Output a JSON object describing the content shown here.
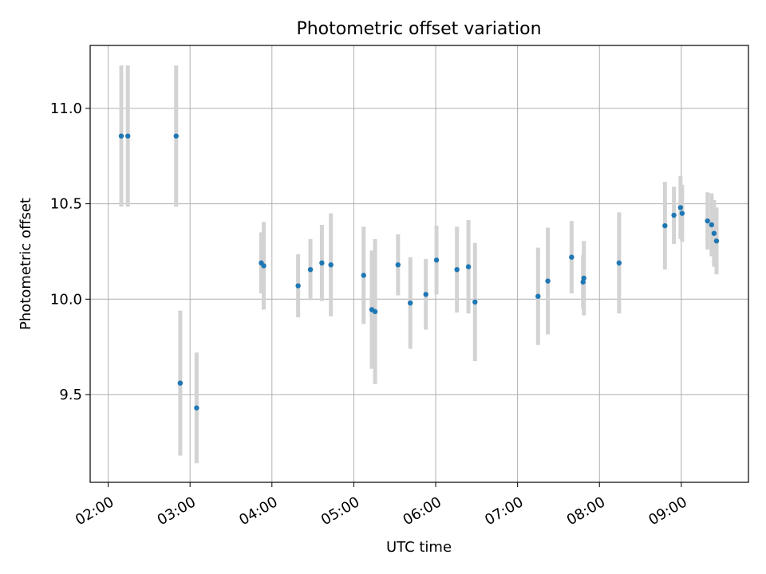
{
  "chart_data": {
    "type": "scatter",
    "title": "Photometric offset variation",
    "xlabel": "UTC time",
    "ylabel": "Photometric offset",
    "grid": true,
    "x_unit": "hours UTC",
    "xlim": [
      1.78,
      9.82
    ],
    "ylim": [
      9.04,
      11.33
    ],
    "x_ticks": [
      2,
      3,
      4,
      5,
      6,
      7,
      8,
      9
    ],
    "x_tick_labels": [
      "02:00",
      "03:00",
      "04:00",
      "05:00",
      "06:00",
      "07:00",
      "08:00",
      "09:00"
    ],
    "y_ticks": [
      9.5,
      10.0,
      10.5,
      11.0
    ],
    "y_tick_labels": [
      "9.5",
      "10.0",
      "10.5",
      "11.0"
    ],
    "colors": {
      "point": "#1f77b4",
      "errorbar": "#d3d3d3",
      "grid": "#b0b0b0"
    },
    "points": [
      {
        "x": 2.16,
        "y": 10.855,
        "err": 0.37
      },
      {
        "x": 2.24,
        "y": 10.855,
        "err": 0.37
      },
      {
        "x": 2.83,
        "y": 10.855,
        "err": 0.37
      },
      {
        "x": 2.88,
        "y": 9.56,
        "err": 0.38
      },
      {
        "x": 3.08,
        "y": 9.43,
        "err": 0.29
      },
      {
        "x": 3.87,
        "y": 10.19,
        "err": 0.16
      },
      {
        "x": 3.9,
        "y": 10.175,
        "err": 0.23
      },
      {
        "x": 4.32,
        "y": 10.07,
        "err": 0.165
      },
      {
        "x": 4.47,
        "y": 10.155,
        "err": 0.16
      },
      {
        "x": 4.61,
        "y": 10.19,
        "err": 0.2
      },
      {
        "x": 4.72,
        "y": 10.18,
        "err": 0.27
      },
      {
        "x": 5.12,
        "y": 10.125,
        "err": 0.255
      },
      {
        "x": 5.22,
        "y": 9.945,
        "err": 0.31
      },
      {
        "x": 5.26,
        "y": 9.935,
        "err": 0.38
      },
      {
        "x": 5.54,
        "y": 10.18,
        "err": 0.16
      },
      {
        "x": 5.69,
        "y": 9.98,
        "err": 0.24
      },
      {
        "x": 5.88,
        "y": 10.025,
        "err": 0.185
      },
      {
        "x": 6.01,
        "y": 10.205,
        "err": 0.18
      },
      {
        "x": 6.26,
        "y": 10.155,
        "err": 0.225
      },
      {
        "x": 6.4,
        "y": 10.17,
        "err": 0.245
      },
      {
        "x": 6.48,
        "y": 9.985,
        "err": 0.31
      },
      {
        "x": 7.25,
        "y": 10.015,
        "err": 0.255
      },
      {
        "x": 7.37,
        "y": 10.095,
        "err": 0.28
      },
      {
        "x": 7.66,
        "y": 10.22,
        "err": 0.19
      },
      {
        "x": 7.8,
        "y": 10.09,
        "err": 0.14
      },
      {
        "x": 7.81,
        "y": 10.11,
        "err": 0.195
      },
      {
        "x": 8.24,
        "y": 10.19,
        "err": 0.265
      },
      {
        "x": 8.8,
        "y": 10.385,
        "err": 0.23
      },
      {
        "x": 8.91,
        "y": 10.44,
        "err": 0.15
      },
      {
        "x": 8.99,
        "y": 10.48,
        "err": 0.165
      },
      {
        "x": 9.01,
        "y": 10.45,
        "err": 0.15
      },
      {
        "x": 9.32,
        "y": 10.41,
        "err": 0.15
      },
      {
        "x": 9.37,
        "y": 10.39,
        "err": 0.165
      },
      {
        "x": 9.4,
        "y": 10.345,
        "err": 0.175
      },
      {
        "x": 9.43,
        "y": 10.305,
        "err": 0.175
      }
    ]
  }
}
